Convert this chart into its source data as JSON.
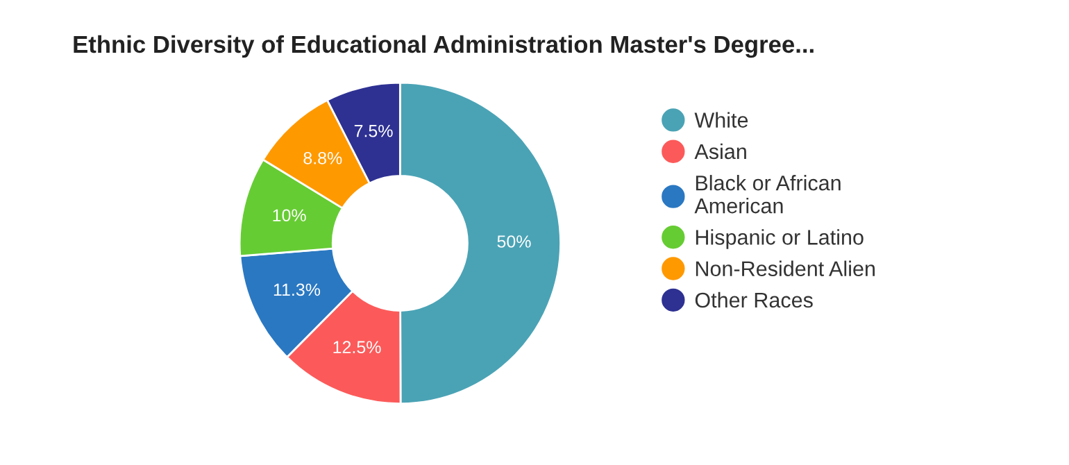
{
  "chart_data": {
    "type": "donut",
    "title": "Ethnic Diversity of Educational Administration Master's Degree...",
    "categories": [
      "White",
      "Asian",
      "Black or African American",
      "Hispanic or Latino",
      "Non-Resident Alien",
      "Other Races"
    ],
    "values": [
      50,
      12.5,
      11.3,
      10,
      8.8,
      7.5
    ],
    "colors": [
      "#4aa3b5",
      "#fc5a5a",
      "#2a78c2",
      "#66cc33",
      "#ff9900",
      "#2e3192"
    ],
    "value_labels": [
      "50%",
      "12.5%",
      "11.3%",
      "10%",
      "8.8%",
      "7.5%"
    ],
    "legend": "right"
  }
}
